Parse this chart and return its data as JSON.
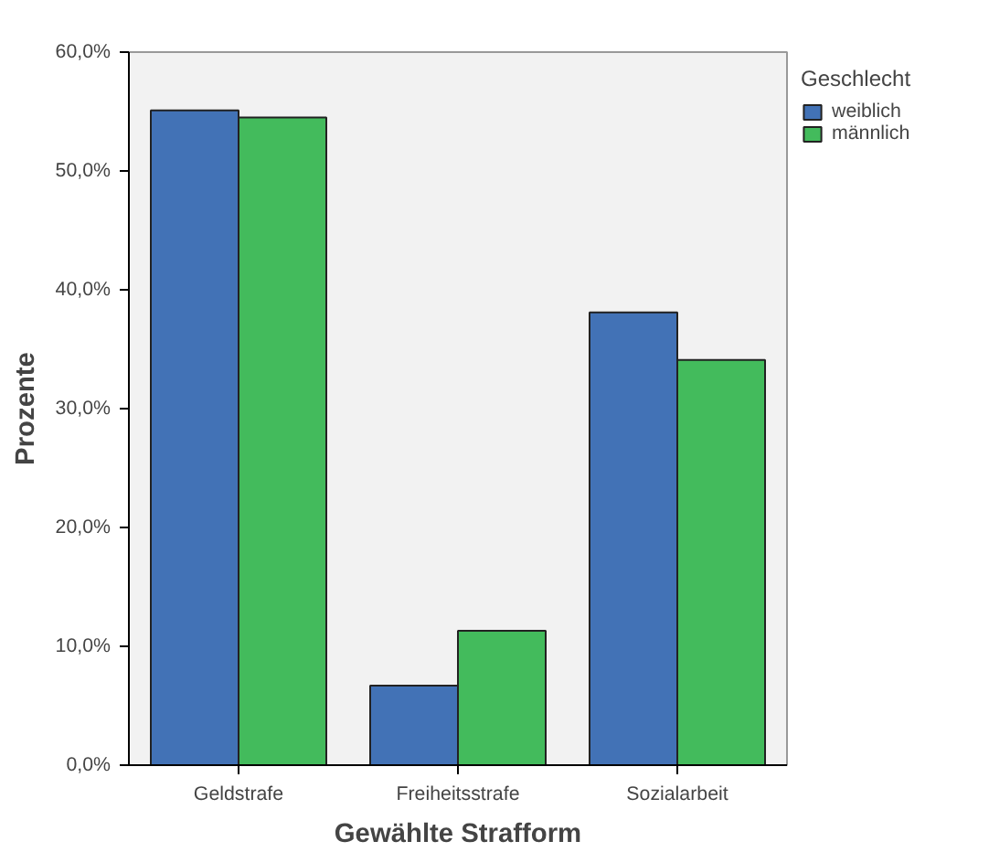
{
  "chart_data": {
    "type": "bar",
    "xlabel": "Gewählte Strafform",
    "ylabel": "Prozente",
    "legend_title": "Geschlecht",
    "categories": [
      "Geldstrafe",
      "Freiheitsstrafe",
      "Sozialarbeit"
    ],
    "series": [
      {
        "name": "weiblich",
        "color": "#4272b6",
        "values": [
          55.1,
          6.7,
          38.1
        ]
      },
      {
        "name": "männlich",
        "color": "#43bb5c",
        "values": [
          54.5,
          11.3,
          34.1
        ]
      }
    ],
    "ylim": [
      0,
      60
    ],
    "yticks": [
      {
        "value": 0,
        "label": "0,0%"
      },
      {
        "value": 10,
        "label": "10,0%"
      },
      {
        "value": 20,
        "label": "20,0%"
      },
      {
        "value": 30,
        "label": "30,0%"
      },
      {
        "value": 40,
        "label": "40,0%"
      },
      {
        "value": 50,
        "label": "50,0%"
      },
      {
        "value": 60,
        "label": "60,0%"
      }
    ],
    "legend": "top right"
  }
}
